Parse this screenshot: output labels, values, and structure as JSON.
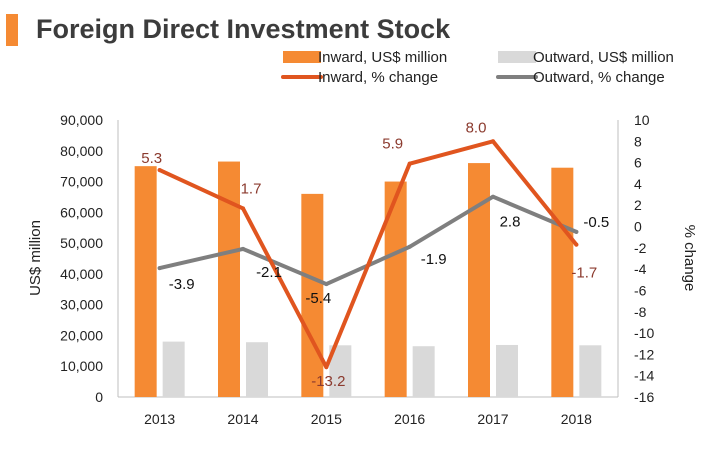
{
  "title": "Foreign Direct Investment Stock",
  "colors": {
    "accent": "#f58a33",
    "inward_bar": "#f58a33",
    "outward_bar": "#d9d9d9",
    "inward_line": "#e0551f",
    "outward_line": "#7f7f7f",
    "inward_label": "#8b3a2e",
    "outward_label": "#111111"
  },
  "chart_data": {
    "type": "bar",
    "title": "Foreign Direct Investment Stock",
    "categories": [
      "2013",
      "2014",
      "2015",
      "2016",
      "2017",
      "2018"
    ],
    "series": [
      {
        "name": "Inward, US$ million",
        "kind": "bar",
        "axis": "left",
        "values": [
          75000,
          76500,
          66000,
          70000,
          76000,
          74500
        ]
      },
      {
        "name": "Outward, US$ million",
        "kind": "bar",
        "axis": "left",
        "values": [
          18000,
          17800,
          16800,
          16500,
          16900,
          16800
        ]
      },
      {
        "name": "Inward, % change",
        "kind": "line",
        "axis": "right",
        "values": [
          5.3,
          1.7,
          -13.2,
          5.9,
          8.0,
          -1.7
        ],
        "labels": [
          "5.3",
          "1.7",
          "-13.2",
          "5.9",
          "8.0",
          "-1.7"
        ]
      },
      {
        "name": "Outward, % change",
        "kind": "line",
        "axis": "right",
        "values": [
          -3.9,
          -2.1,
          -5.4,
          -1.9,
          2.8,
          -0.5
        ],
        "labels": [
          "-3.9",
          "-2.1",
          "-5.4",
          "-1.9",
          "2.8",
          "-0.5"
        ]
      }
    ],
    "ylabel": "US$ million",
    "y2label": "% change",
    "ylim": [
      0,
      90000
    ],
    "y2lim": [
      -16,
      10
    ],
    "yticks": [
      "0",
      "10,000",
      "20,000",
      "30,000",
      "40,000",
      "50,000",
      "60,000",
      "70,000",
      "80,000",
      "90,000"
    ],
    "y2ticks": [
      "-16",
      "-14",
      "-12",
      "-10",
      "-8",
      "-6",
      "-4",
      "-2",
      "0",
      "2",
      "4",
      "6",
      "8",
      "10"
    ],
    "legend": [
      {
        "label": "Inward, US$ million",
        "kind": "bar",
        "series": 0
      },
      {
        "label": "Outward, US$ million",
        "kind": "bar",
        "series": 1
      },
      {
        "label": "Inward, % change",
        "kind": "line",
        "series": 2
      },
      {
        "label": "Outward, % change",
        "kind": "line",
        "series": 3
      }
    ],
    "legend_position": "top",
    "grid": false
  }
}
